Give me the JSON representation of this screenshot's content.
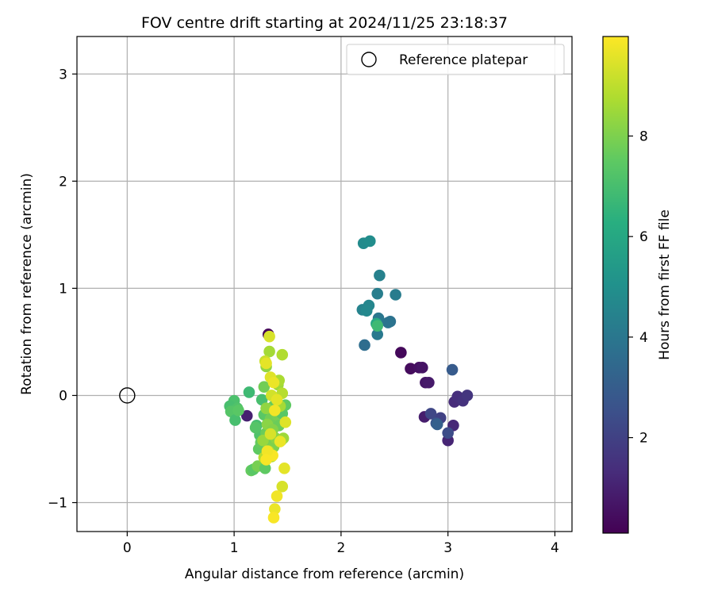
{
  "chart_data": {
    "type": "scatter",
    "title": "FOV centre drift starting at 2024/11/25 23:18:37",
    "xlabel": "Angular distance from reference (arcmin)",
    "ylabel": "Rotation from reference (arcmin)",
    "xlim": [
      -0.47,
      4.16
    ],
    "ylim": [
      -1.27,
      3.35
    ],
    "xticks": [
      0,
      1,
      2,
      3,
      4
    ],
    "xtick_labels": [
      "0",
      "1",
      "2",
      "3",
      "4"
    ],
    "yticks": [
      -1,
      0,
      1,
      2,
      3
    ],
    "ytick_labels": [
      "−1",
      "0",
      "1",
      "2",
      "3"
    ],
    "grid": true,
    "legend": {
      "position": "top-right",
      "entries": [
        "Reference platepar"
      ]
    },
    "colorbar": {
      "label": "Hours from first FF file",
      "colormap": "viridis",
      "range": [
        0.1,
        9.98
      ],
      "ticks": [
        2,
        4,
        6,
        8
      ],
      "tick_labels": [
        "2",
        "4",
        "6",
        "8"
      ]
    },
    "reference_point": {
      "name": "Reference platepar",
      "x": 0,
      "y": 0
    },
    "points": [
      {
        "x": 1.32,
        "y": 0.57,
        "h": 0.2
      },
      {
        "x": 2.56,
        "y": 0.4,
        "h": 0.3
      },
      {
        "x": 2.65,
        "y": 0.25,
        "h": 0.4
      },
      {
        "x": 2.73,
        "y": 0.26,
        "h": 0.5
      },
      {
        "x": 2.76,
        "y": 0.26,
        "h": 0.6
      },
      {
        "x": 2.79,
        "y": 0.12,
        "h": 0.7
      },
      {
        "x": 2.82,
        "y": 0.12,
        "h": 0.8
      },
      {
        "x": 2.78,
        "y": -0.2,
        "h": 0.9
      },
      {
        "x": 1.12,
        "y": -0.19,
        "h": 1.0
      },
      {
        "x": 3.0,
        "y": -0.42,
        "h": 1.1
      },
      {
        "x": 3.05,
        "y": -0.28,
        "h": 1.2
      },
      {
        "x": 3.06,
        "y": -0.06,
        "h": 1.3
      },
      {
        "x": 3.09,
        "y": -0.01,
        "h": 1.4
      },
      {
        "x": 3.14,
        "y": -0.05,
        "h": 1.5
      },
      {
        "x": 3.18,
        "y": 0.0,
        "h": 1.6
      },
      {
        "x": 2.93,
        "y": -0.21,
        "h": 2.0
      },
      {
        "x": 2.84,
        "y": -0.17,
        "h": 2.2
      },
      {
        "x": 3.0,
        "y": -0.35,
        "h": 2.4
      },
      {
        "x": 2.89,
        "y": -0.26,
        "h": 2.7
      },
      {
        "x": 3.04,
        "y": 0.24,
        "h": 2.9
      },
      {
        "x": 2.9,
        "y": -0.27,
        "h": 3.1
      },
      {
        "x": 2.22,
        "y": 0.47,
        "h": 3.6
      },
      {
        "x": 2.46,
        "y": 0.69,
        "h": 3.8
      },
      {
        "x": 2.44,
        "y": 0.68,
        "h": 3.9
      },
      {
        "x": 2.35,
        "y": 0.72,
        "h": 4.0
      },
      {
        "x": 2.34,
        "y": 0.57,
        "h": 4.1
      },
      {
        "x": 2.51,
        "y": 0.94,
        "h": 4.2
      },
      {
        "x": 2.34,
        "y": 0.95,
        "h": 4.3
      },
      {
        "x": 2.36,
        "y": 1.12,
        "h": 4.4
      },
      {
        "x": 2.2,
        "y": 0.8,
        "h": 4.5
      },
      {
        "x": 2.26,
        "y": 0.84,
        "h": 4.6
      },
      {
        "x": 2.24,
        "y": 0.79,
        "h": 4.7
      },
      {
        "x": 2.21,
        "y": 1.42,
        "h": 4.8
      },
      {
        "x": 2.27,
        "y": 1.44,
        "h": 4.9
      },
      {
        "x": 2.33,
        "y": 0.67,
        "h": 6.0
      },
      {
        "x": 2.34,
        "y": 0.65,
        "h": 6.8
      },
      {
        "x": 1.14,
        "y": 0.03,
        "h": 6.8
      },
      {
        "x": 1.0,
        "y": -0.05,
        "h": 7.1
      },
      {
        "x": 0.96,
        "y": -0.1,
        "h": 7.0
      },
      {
        "x": 1.03,
        "y": -0.12,
        "h": 7.2
      },
      {
        "x": 0.97,
        "y": -0.15,
        "h": 7.3
      },
      {
        "x": 1.01,
        "y": -0.23,
        "h": 7.0
      },
      {
        "x": 1.04,
        "y": -0.14,
        "h": 7.4
      },
      {
        "x": 1.21,
        "y": -0.28,
        "h": 7.0
      },
      {
        "x": 1.24,
        "y": -0.37,
        "h": 7.2
      },
      {
        "x": 1.23,
        "y": -0.5,
        "h": 7.5
      },
      {
        "x": 1.25,
        "y": -0.44,
        "h": 7.6
      },
      {
        "x": 1.2,
        "y": -0.3,
        "h": 7.3
      },
      {
        "x": 1.16,
        "y": -0.7,
        "h": 7.6
      },
      {
        "x": 1.18,
        "y": -0.69,
        "h": 7.4
      },
      {
        "x": 1.22,
        "y": -0.66,
        "h": 7.9
      },
      {
        "x": 1.26,
        "y": -0.04,
        "h": 7.0
      },
      {
        "x": 1.28,
        "y": -0.18,
        "h": 7.4
      },
      {
        "x": 1.3,
        "y": -0.35,
        "h": 7.7
      },
      {
        "x": 1.29,
        "y": -0.68,
        "h": 7.5
      },
      {
        "x": 1.34,
        "y": -0.22,
        "h": 7.8
      },
      {
        "x": 1.37,
        "y": -0.1,
        "h": 7.6
      },
      {
        "x": 1.4,
        "y": -0.18,
        "h": 7.9
      },
      {
        "x": 1.42,
        "y": -0.28,
        "h": 7.7
      },
      {
        "x": 1.45,
        "y": -0.17,
        "h": 7.4
      },
      {
        "x": 1.48,
        "y": -0.09,
        "h": 7.5
      },
      {
        "x": 1.28,
        "y": 0.08,
        "h": 7.8
      },
      {
        "x": 1.33,
        "y": -0.45,
        "h": 7.9
      },
      {
        "x": 1.37,
        "y": -0.48,
        "h": 8.0
      },
      {
        "x": 1.31,
        "y": -0.27,
        "h": 8.2
      },
      {
        "x": 1.36,
        "y": -0.32,
        "h": 8.1
      },
      {
        "x": 1.3,
        "y": -0.12,
        "h": 8.3
      },
      {
        "x": 1.27,
        "y": -0.42,
        "h": 8.4
      },
      {
        "x": 1.39,
        "y": -0.4,
        "h": 8.2
      },
      {
        "x": 1.41,
        "y": 0.1,
        "h": 8.5
      },
      {
        "x": 1.3,
        "y": 0.27,
        "h": 8.3
      },
      {
        "x": 1.33,
        "y": 0.41,
        "h": 8.6
      },
      {
        "x": 1.45,
        "y": 0.38,
        "h": 8.8
      },
      {
        "x": 1.42,
        "y": 0.14,
        "h": 8.7
      },
      {
        "x": 1.45,
        "y": 0.02,
        "h": 8.9
      },
      {
        "x": 1.43,
        "y": -0.1,
        "h": 8.6
      },
      {
        "x": 1.44,
        "y": -0.42,
        "h": 8.8
      },
      {
        "x": 1.46,
        "y": -0.4,
        "h": 8.5
      },
      {
        "x": 1.28,
        "y": -0.58,
        "h": 8.9
      },
      {
        "x": 1.35,
        "y": -0.57,
        "h": 8.7
      },
      {
        "x": 1.32,
        "y": -0.52,
        "h": 9.0
      },
      {
        "x": 1.29,
        "y": 0.32,
        "h": 9.2
      },
      {
        "x": 1.33,
        "y": 0.55,
        "h": 9.4
      },
      {
        "x": 1.3,
        "y": 0.3,
        "h": 9.6
      },
      {
        "x": 1.34,
        "y": 0.17,
        "h": 9.5
      },
      {
        "x": 1.37,
        "y": 0.12,
        "h": 9.7
      },
      {
        "x": 1.35,
        "y": 0.0,
        "h": 9.3
      },
      {
        "x": 1.4,
        "y": -0.04,
        "h": 9.6
      },
      {
        "x": 1.38,
        "y": -0.14,
        "h": 9.8
      },
      {
        "x": 1.48,
        "y": -0.25,
        "h": 9.5
      },
      {
        "x": 1.43,
        "y": -0.43,
        "h": 9.7
      },
      {
        "x": 1.36,
        "y": -0.56,
        "h": 9.9
      },
      {
        "x": 1.47,
        "y": -0.68,
        "h": 9.6
      },
      {
        "x": 1.45,
        "y": -0.85,
        "h": 9.4
      },
      {
        "x": 1.4,
        "y": -0.94,
        "h": 9.8
      },
      {
        "x": 1.38,
        "y": -1.06,
        "h": 9.7
      },
      {
        "x": 1.37,
        "y": -1.14,
        "h": 9.9
      },
      {
        "x": 1.31,
        "y": -0.52,
        "h": 9.8
      },
      {
        "x": 1.34,
        "y": -0.36,
        "h": 9.4
      },
      {
        "x": 1.3,
        "y": -0.6,
        "h": 9.9
      }
    ]
  }
}
